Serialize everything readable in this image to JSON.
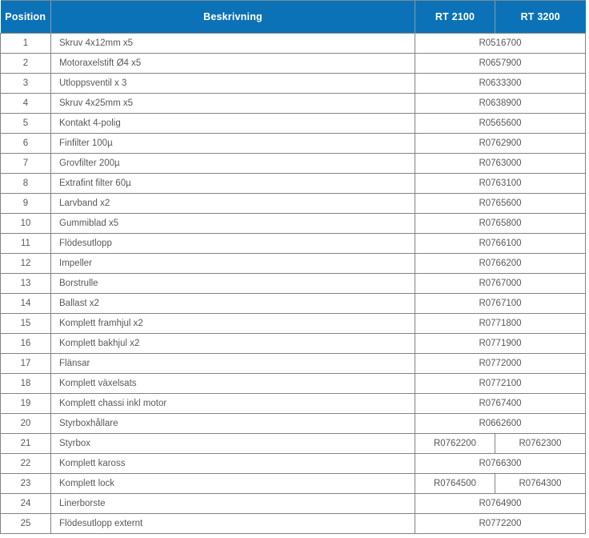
{
  "colors": {
    "header_bg": "#0C72B8",
    "header_text": "#FFFFFF",
    "header_divider": "#8D99A5",
    "row_border": "#848484",
    "body_text": "#58595B"
  },
  "table": {
    "columns": [
      {
        "key": "position",
        "label": "Position"
      },
      {
        "key": "description",
        "label": "Beskrivning"
      },
      {
        "key": "rt2100",
        "label": "RT 2100"
      },
      {
        "key": "rt3200",
        "label": "RT 3200"
      }
    ],
    "rows": [
      {
        "position": "1",
        "description": "Skruv 4x12mm x5",
        "shared_part": "R0516700"
      },
      {
        "position": "2",
        "description": "Motoraxelstift Ø4 x5",
        "shared_part": "R0657900"
      },
      {
        "position": "3",
        "description": "Utloppsventil x 3",
        "shared_part": "R0633300"
      },
      {
        "position": "4",
        "description": "Skruv 4x25mm x5",
        "shared_part": "R0638900"
      },
      {
        "position": "5",
        "description": "Kontakt 4-polig",
        "shared_part": "R0565600"
      },
      {
        "position": "6",
        "description": "Finfilter 100µ",
        "shared_part": "R0762900"
      },
      {
        "position": "7",
        "description": "Grovfilter 200µ",
        "shared_part": "R0763000"
      },
      {
        "position": "8",
        "description": "Extrafint filter 60µ",
        "shared_part": "R0763100"
      },
      {
        "position": "9",
        "description": "Larvband x2",
        "shared_part": "R0765600"
      },
      {
        "position": "10",
        "description": "Gummiblad x5",
        "shared_part": "R0765800"
      },
      {
        "position": "11",
        "description": "Flödesutlopp",
        "shared_part": "R0766100"
      },
      {
        "position": "12",
        "description": "Impeller",
        "shared_part": "R0766200"
      },
      {
        "position": "13",
        "description": "Borstrulle",
        "shared_part": "R0767000"
      },
      {
        "position": "14",
        "description": "Ballast x2",
        "shared_part": "R0767100"
      },
      {
        "position": "15",
        "description": "Komplett framhjul x2",
        "shared_part": "R0771800"
      },
      {
        "position": "16",
        "description": "Komplett bakhjul x2",
        "shared_part": "R0771900"
      },
      {
        "position": "17",
        "description": "Flänsar",
        "shared_part": "R0772000"
      },
      {
        "position": "18",
        "description": "Komplett växelsats",
        "shared_part": "R0772100"
      },
      {
        "position": "19",
        "description": "Komplett chassi inkl motor",
        "shared_part": "R0767400"
      },
      {
        "position": "20",
        "description": "Styrboxhållare",
        "shared_part": "R0662600"
      },
      {
        "position": "21",
        "description": "Styrbox",
        "rt2100_part": "R0762200",
        "rt3200_part": "R0762300"
      },
      {
        "position": "22",
        "description": "Komplett kaross",
        "shared_part": "R0766300"
      },
      {
        "position": "23",
        "description": "Komplett lock",
        "rt2100_part": "R0764500",
        "rt3200_part": "R0764300"
      },
      {
        "position": "24",
        "description": "Linerborste",
        "shared_part": "R0764900"
      },
      {
        "position": "25",
        "description": "Flödesutlopp externt",
        "shared_part": "R0772200"
      }
    ]
  }
}
